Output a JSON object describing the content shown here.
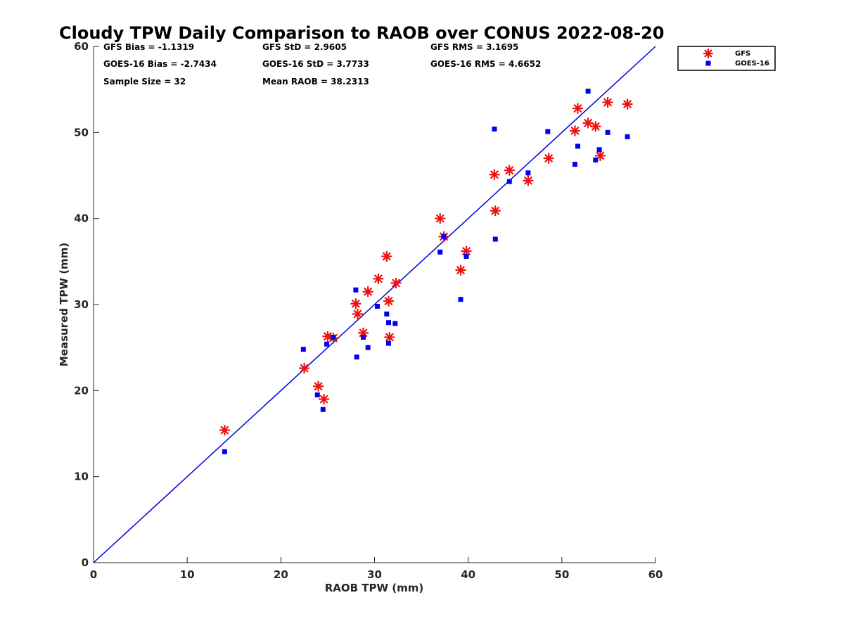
{
  "chart_data": {
    "type": "scatter",
    "title": "Cloudy TPW Daily Comparison to RAOB over CONUS 2022-08-20",
    "xlabel": "RAOB TPW (mm)",
    "ylabel": "Measured TPW (mm)",
    "xlim": [
      0,
      60
    ],
    "ylim": [
      0,
      60
    ],
    "xticks": [
      "0",
      "10",
      "20",
      "30",
      "40",
      "50",
      "60"
    ],
    "yticks": [
      "0",
      "10",
      "20",
      "30",
      "40",
      "50",
      "60"
    ],
    "grid": false,
    "legend_position": "top-right-outside",
    "stats": [
      [
        "GFS Bias = -1.1319",
        "GFS StD = 2.9605",
        "GFS RMS = 3.1695"
      ],
      [
        "GOES-16 Bias = -2.7434",
        "GOES-16 StD = 3.7733",
        "GOES-16 RMS = 4.6652"
      ],
      [
        "Sample Size = 32",
        "Mean RAOB = 38.2313",
        ""
      ]
    ],
    "reference_line": {
      "x": [
        0,
        60
      ],
      "y": [
        0,
        60
      ],
      "color": "#0000dd"
    },
    "series": [
      {
        "name": "GFS",
        "marker": "asterisk",
        "color": "#ee1111",
        "points": [
          [
            14.0,
            15.4
          ],
          [
            22.5,
            22.6
          ],
          [
            24.0,
            20.5
          ],
          [
            24.6,
            19.0
          ],
          [
            25.0,
            26.3
          ],
          [
            25.6,
            26.1
          ],
          [
            28.0,
            30.1
          ],
          [
            28.2,
            28.9
          ],
          [
            28.8,
            26.7
          ],
          [
            29.3,
            31.5
          ],
          [
            30.4,
            33.0
          ],
          [
            31.3,
            35.6
          ],
          [
            31.5,
            30.4
          ],
          [
            31.6,
            26.2
          ],
          [
            32.3,
            32.5
          ],
          [
            37.0,
            40.0
          ],
          [
            37.4,
            37.9
          ],
          [
            39.2,
            34.0
          ],
          [
            39.8,
            36.2
          ],
          [
            42.8,
            45.1
          ],
          [
            42.9,
            40.9
          ],
          [
            44.4,
            45.6
          ],
          [
            46.4,
            44.4
          ],
          [
            48.6,
            47.0
          ],
          [
            51.4,
            50.2
          ],
          [
            51.7,
            52.8
          ],
          [
            52.8,
            51.1
          ],
          [
            53.6,
            50.7
          ],
          [
            54.1,
            47.3
          ],
          [
            54.9,
            53.5
          ],
          [
            57.0,
            53.3
          ]
        ]
      },
      {
        "name": "GOES-16",
        "marker": "square",
        "color": "#0000ee",
        "points": [
          [
            14.0,
            12.9
          ],
          [
            22.4,
            24.8
          ],
          [
            23.9,
            19.5
          ],
          [
            24.5,
            17.8
          ],
          [
            24.9,
            25.4
          ],
          [
            25.6,
            26.2
          ],
          [
            28.0,
            31.7
          ],
          [
            28.1,
            23.9
          ],
          [
            28.8,
            26.2
          ],
          [
            29.3,
            25.0
          ],
          [
            30.3,
            29.8
          ],
          [
            31.3,
            28.9
          ],
          [
            31.5,
            27.9
          ],
          [
            31.5,
            25.5
          ],
          [
            32.2,
            27.8
          ],
          [
            37.0,
            36.1
          ],
          [
            37.4,
            37.9
          ],
          [
            39.2,
            30.6
          ],
          [
            39.8,
            35.6
          ],
          [
            42.8,
            50.4
          ],
          [
            42.9,
            37.6
          ],
          [
            44.4,
            44.3
          ],
          [
            46.4,
            45.3
          ],
          [
            48.5,
            50.1
          ],
          [
            51.4,
            46.3
          ],
          [
            51.7,
            48.4
          ],
          [
            52.8,
            54.8
          ],
          [
            53.6,
            46.8
          ],
          [
            54.0,
            48.0
          ],
          [
            54.9,
            50.0
          ],
          [
            57.0,
            49.5
          ]
        ]
      }
    ]
  }
}
